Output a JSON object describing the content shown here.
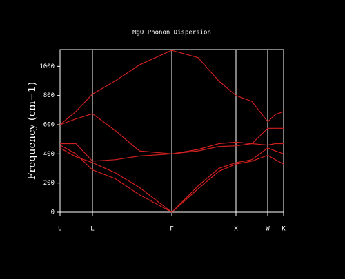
{
  "chart_data": {
    "type": "line",
    "title": "MgO Phonon Dispersion",
    "y_label": "Frequency (cm−1)",
    "x": [
      0,
      23,
      47,
      80,
      115,
      162,
      200,
      230,
      255,
      278,
      301,
      312,
      324
    ],
    "xlim": [
      0,
      324
    ],
    "xticks": [
      {
        "value": 0,
        "label": "U"
      },
      {
        "value": 47,
        "label": "L"
      },
      {
        "value": 162,
        "label": "Γ"
      },
      {
        "value": 255,
        "label": "X"
      },
      {
        "value": 301,
        "label": "W"
      },
      {
        "value": 324,
        "label": "K"
      }
    ],
    "ylim": [
      0,
      1115
    ],
    "yticks": [
      0,
      200,
      400,
      600,
      800,
      1000
    ],
    "series": [
      {
        "color": "#d02020",
        "values": [
          600,
          690,
          810,
          900,
          1010,
          1110,
          1060,
          900,
          800,
          760,
          620,
          670,
          690
        ]
      },
      {
        "color": "#d02020",
        "values": [
          600,
          640,
          675,
          560,
          420,
          400,
          420,
          450,
          455,
          470,
          575,
          575,
          575
        ]
      },
      {
        "color": "#d02020",
        "values": [
          470,
          470,
          350,
          360,
          385,
          400,
          430,
          470,
          480,
          470,
          460,
          470,
          470
        ]
      },
      {
        "color": "#d02020",
        "values": [
          460,
          400,
          290,
          230,
          120,
          0,
          180,
          300,
          340,
          360,
          440,
          420,
          400
        ]
      },
      {
        "color": "#d02020",
        "values": [
          440,
          380,
          340,
          270,
          170,
          0,
          160,
          280,
          330,
          350,
          390,
          360,
          330
        ]
      }
    ]
  }
}
